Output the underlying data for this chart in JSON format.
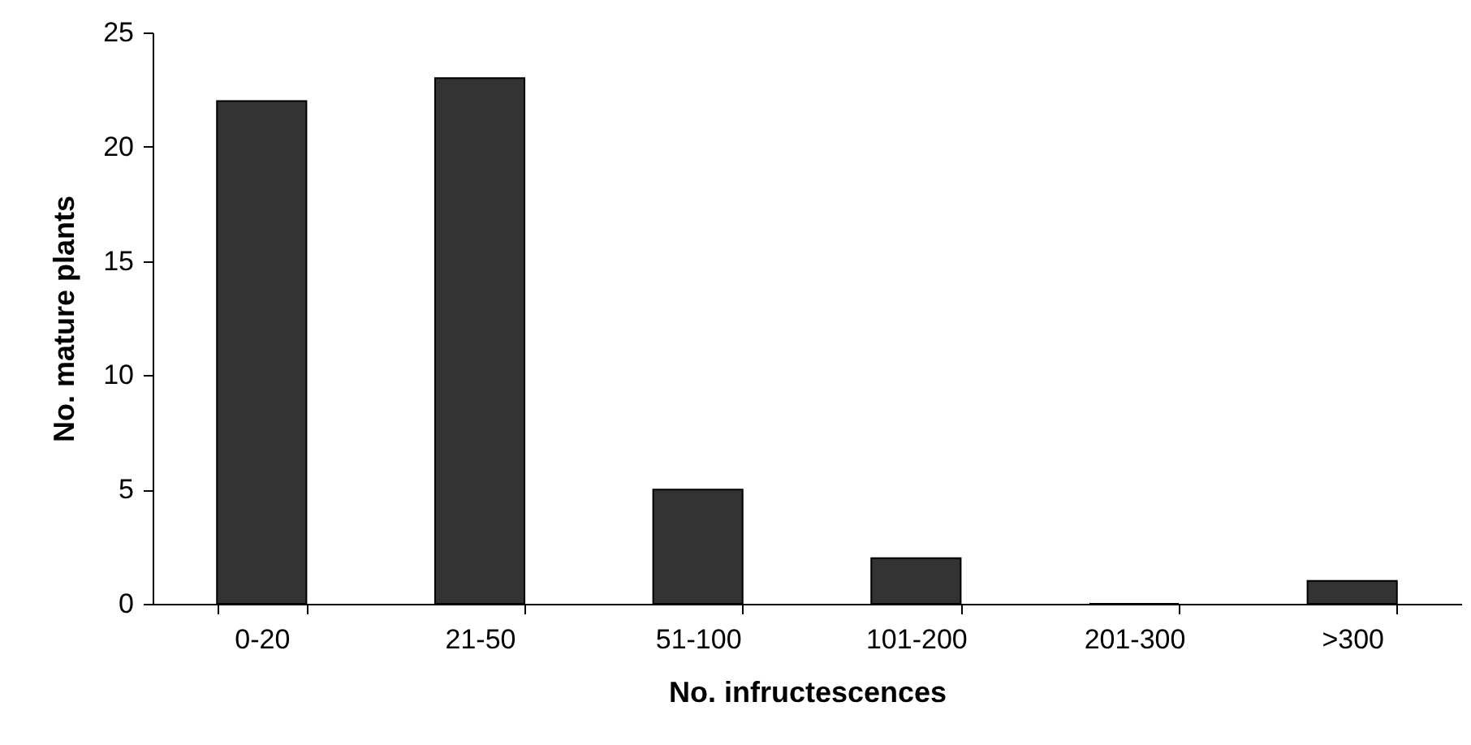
{
  "chart_data": {
    "type": "bar",
    "xlabel": "No. infructescences",
    "ylabel": "No. mature plants",
    "categories": [
      "0-20",
      "21-50",
      "51-100",
      "101-200",
      "201-300",
      ">300"
    ],
    "values": [
      22,
      23,
      5,
      2,
      0,
      1
    ],
    "color": "#333333",
    "ylim": [
      0,
      25
    ],
    "yticks": [
      0,
      5,
      10,
      15,
      20,
      25
    ],
    "grid": false
  }
}
